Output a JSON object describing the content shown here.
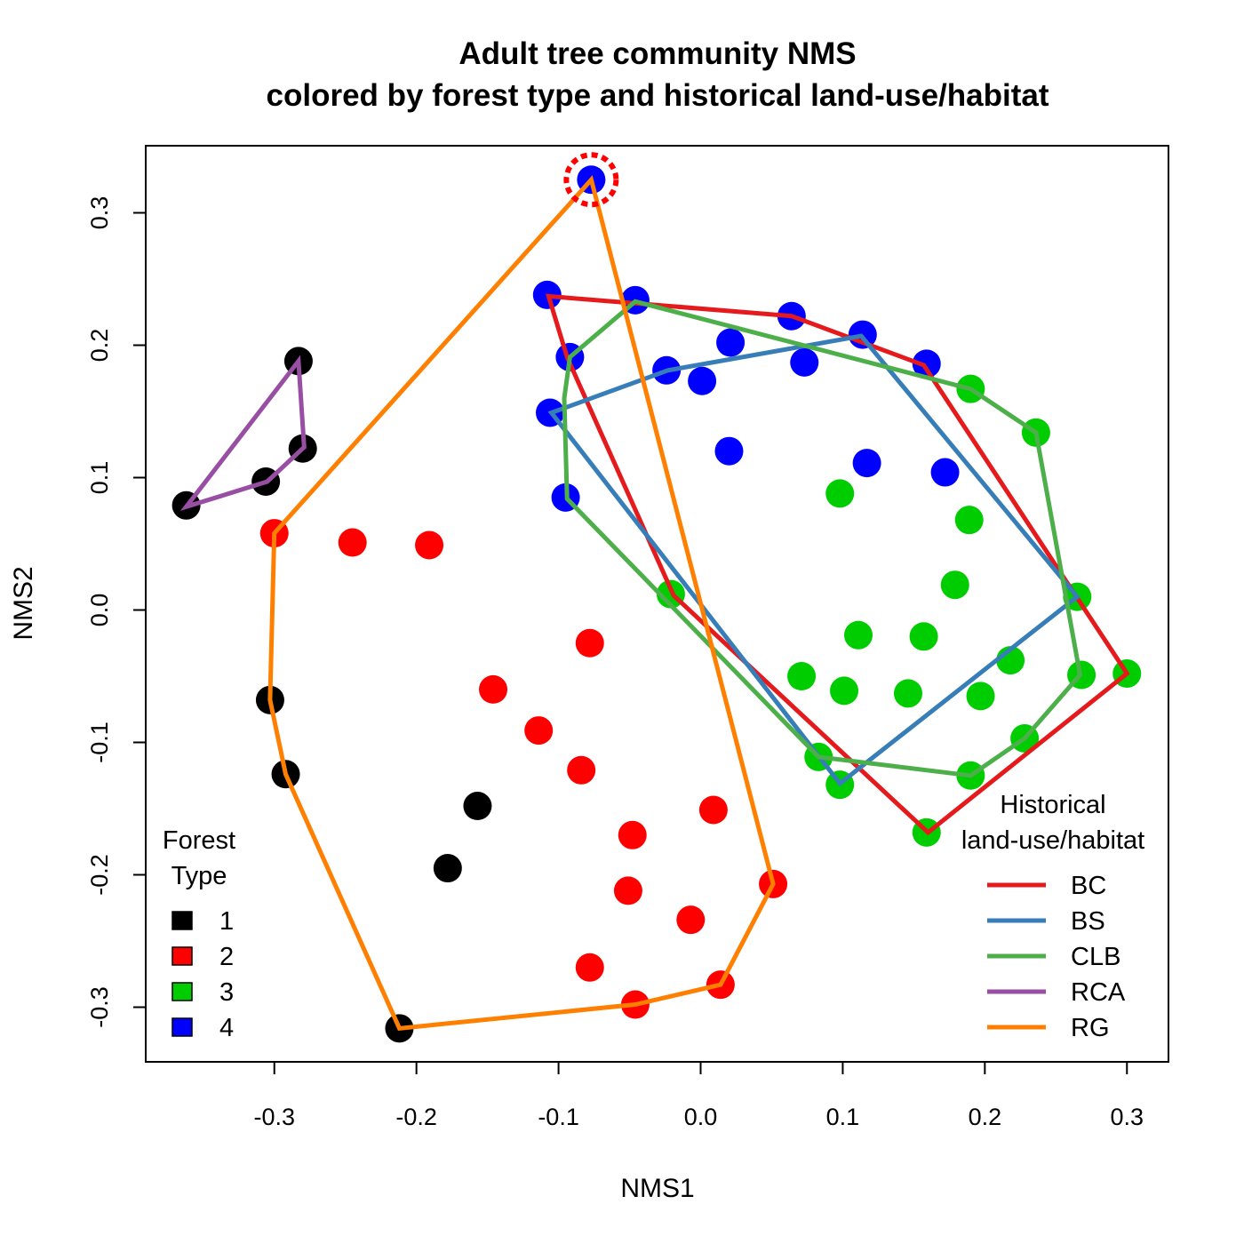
{
  "chart_data": {
    "type": "scatter",
    "title": "Adult tree community NMS",
    "subtitle": "colored by forest type and historical land-use/habitat",
    "xlabel": "NMS1",
    "ylabel": "NMS2",
    "xlim": [
      -0.39,
      0.33
    ],
    "ylim": [
      -0.34,
      0.35
    ],
    "xticks": [
      -0.3,
      -0.2,
      -0.1,
      0.0,
      0.1,
      0.2,
      0.3
    ],
    "xtick_labels": [
      "-0.3",
      "-0.2",
      "-0.1",
      "0.0",
      "0.1",
      "0.2",
      "0.3"
    ],
    "yticks": [
      -0.3,
      -0.2,
      -0.1,
      0.0,
      0.1,
      0.2,
      0.3
    ],
    "ytick_labels": [
      "-0.3",
      "-0.2",
      "-0.1",
      "0.0",
      "0.1",
      "0.2",
      "0.3"
    ],
    "grid": false,
    "forest_type_legend": {
      "title_line1": "Forest",
      "title_line2": "Type",
      "placement": "bottom-left",
      "items": [
        {
          "label": "1",
          "color": "#000000"
        },
        {
          "label": "2",
          "color": "#ff0000"
        },
        {
          "label": "3",
          "color": "#00cd00"
        },
        {
          "label": "4",
          "color": "#0000ff"
        }
      ]
    },
    "habitat_legend": {
      "title_line1": "Historical",
      "title_line2": "land-use/habitat",
      "placement": "bottom-right",
      "items": [
        {
          "label": "BC",
          "color": "#e41a1c"
        },
        {
          "label": "BS",
          "color": "#377eb8"
        },
        {
          "label": "CLB",
          "color": "#4daf4a"
        },
        {
          "label": "RCA",
          "color": "#984ea3"
        },
        {
          "label": "RG",
          "color": "#ff7f00"
        }
      ]
    },
    "points": [
      {
        "x": -0.077,
        "y": 0.325,
        "type": 4,
        "highlighted": true
      },
      {
        "x": -0.108,
        "y": 0.238,
        "type": 4
      },
      {
        "x": -0.046,
        "y": 0.234,
        "type": 4
      },
      {
        "x": 0.064,
        "y": 0.222,
        "type": 4
      },
      {
        "x": 0.114,
        "y": 0.208,
        "type": 4
      },
      {
        "x": 0.159,
        "y": 0.186,
        "type": 4
      },
      {
        "x": -0.092,
        "y": 0.191,
        "type": 4
      },
      {
        "x": 0.021,
        "y": 0.202,
        "type": 4
      },
      {
        "x": 0.073,
        "y": 0.187,
        "type": 4
      },
      {
        "x": -0.024,
        "y": 0.181,
        "type": 4
      },
      {
        "x": 0.001,
        "y": 0.173,
        "type": 4
      },
      {
        "x": -0.106,
        "y": 0.149,
        "type": 4
      },
      {
        "x": 0.02,
        "y": 0.12,
        "type": 4
      },
      {
        "x": 0.117,
        "y": 0.111,
        "type": 4
      },
      {
        "x": 0.172,
        "y": 0.104,
        "type": 4
      },
      {
        "x": -0.095,
        "y": 0.085,
        "type": 4
      },
      {
        "x": 0.19,
        "y": 0.167,
        "type": 3
      },
      {
        "x": 0.236,
        "y": 0.134,
        "type": 3
      },
      {
        "x": 0.098,
        "y": 0.088,
        "type": 3
      },
      {
        "x": 0.189,
        "y": 0.068,
        "type": 3
      },
      {
        "x": 0.179,
        "y": 0.019,
        "type": 3
      },
      {
        "x": 0.265,
        "y": 0.01,
        "type": 3
      },
      {
        "x": -0.021,
        "y": 0.012,
        "type": 3
      },
      {
        "x": 0.111,
        "y": -0.019,
        "type": 3
      },
      {
        "x": 0.157,
        "y": -0.02,
        "type": 3
      },
      {
        "x": 0.218,
        "y": -0.038,
        "type": 3
      },
      {
        "x": 0.071,
        "y": -0.05,
        "type": 3
      },
      {
        "x": 0.101,
        "y": -0.061,
        "type": 3
      },
      {
        "x": 0.146,
        "y": -0.063,
        "type": 3
      },
      {
        "x": 0.197,
        "y": -0.065,
        "type": 3
      },
      {
        "x": 0.268,
        "y": -0.049,
        "type": 3
      },
      {
        "x": 0.3,
        "y": -0.048,
        "type": 3
      },
      {
        "x": 0.228,
        "y": -0.097,
        "type": 3
      },
      {
        "x": 0.083,
        "y": -0.111,
        "type": 3
      },
      {
        "x": 0.19,
        "y": -0.125,
        "type": 3
      },
      {
        "x": 0.098,
        "y": -0.132,
        "type": 3
      },
      {
        "x": 0.159,
        "y": -0.168,
        "type": 3
      },
      {
        "x": -0.3,
        "y": 0.058,
        "type": 2
      },
      {
        "x": -0.245,
        "y": 0.051,
        "type": 2
      },
      {
        "x": -0.191,
        "y": 0.049,
        "type": 2
      },
      {
        "x": -0.078,
        "y": -0.025,
        "type": 2
      },
      {
        "x": -0.146,
        "y": -0.06,
        "type": 2
      },
      {
        "x": -0.114,
        "y": -0.091,
        "type": 2
      },
      {
        "x": -0.084,
        "y": -0.121,
        "type": 2
      },
      {
        "x": 0.009,
        "y": -0.151,
        "type": 2
      },
      {
        "x": -0.048,
        "y": -0.17,
        "type": 2
      },
      {
        "x": 0.051,
        "y": -0.207,
        "type": 2
      },
      {
        "x": -0.051,
        "y": -0.212,
        "type": 2
      },
      {
        "x": -0.007,
        "y": -0.234,
        "type": 2
      },
      {
        "x": -0.078,
        "y": -0.27,
        "type": 2
      },
      {
        "x": 0.014,
        "y": -0.283,
        "type": 2
      },
      {
        "x": -0.046,
        "y": -0.298,
        "type": 2
      },
      {
        "x": -0.283,
        "y": 0.188,
        "type": 1
      },
      {
        "x": -0.28,
        "y": 0.122,
        "type": 1
      },
      {
        "x": -0.306,
        "y": 0.097,
        "type": 1
      },
      {
        "x": -0.362,
        "y": 0.079,
        "type": 1
      },
      {
        "x": -0.303,
        "y": -0.068,
        "type": 1
      },
      {
        "x": -0.292,
        "y": -0.124,
        "type": 1
      },
      {
        "x": -0.157,
        "y": -0.148,
        "type": 1
      },
      {
        "x": -0.178,
        "y": -0.195,
        "type": 1
      },
      {
        "x": -0.212,
        "y": -0.316,
        "type": 1
      }
    ],
    "hulls": [
      {
        "name": "BC",
        "points": [
          [
            -0.107,
            0.237
          ],
          [
            0.064,
            0.222
          ],
          [
            0.157,
            0.185
          ],
          [
            0.3,
            -0.048
          ],
          [
            0.16,
            -0.168
          ],
          [
            -0.019,
            0.011
          ],
          [
            -0.094,
            0.191
          ]
        ]
      },
      {
        "name": "BS",
        "points": [
          [
            -0.105,
            0.149
          ],
          [
            -0.023,
            0.181
          ],
          [
            0.113,
            0.207
          ],
          [
            0.265,
            0.01
          ],
          [
            0.098,
            -0.131
          ]
        ]
      },
      {
        "name": "CLB",
        "points": [
          [
            -0.092,
            0.191
          ],
          [
            -0.046,
            0.233
          ],
          [
            0.19,
            0.167
          ],
          [
            0.236,
            0.134
          ],
          [
            0.267,
            -0.049
          ],
          [
            0.228,
            -0.097
          ],
          [
            0.19,
            -0.125
          ],
          [
            0.083,
            -0.111
          ],
          [
            -0.094,
            0.084
          ],
          [
            -0.096,
            0.16
          ]
        ]
      },
      {
        "name": "RCA",
        "points": [
          [
            -0.283,
            0.188
          ],
          [
            -0.279,
            0.123
          ],
          [
            -0.305,
            0.097
          ],
          [
            -0.362,
            0.078
          ]
        ]
      },
      {
        "name": "RG",
        "points": [
          [
            -0.077,
            0.325
          ],
          [
            0.051,
            -0.207
          ],
          [
            0.014,
            -0.283
          ],
          [
            -0.046,
            -0.298
          ],
          [
            -0.212,
            -0.316
          ],
          [
            -0.292,
            -0.124
          ],
          [
            -0.303,
            -0.068
          ],
          [
            -0.3,
            0.058
          ]
        ]
      }
    ]
  }
}
